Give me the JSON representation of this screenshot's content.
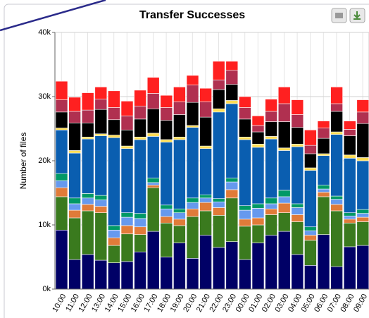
{
  "chart_data": {
    "type": "stacked_bar",
    "title": "Transfer Successes",
    "y_label": "Number of files",
    "categories": [
      "10:00",
      "11:00",
      "12:00",
      "13:00",
      "14:00",
      "15:00",
      "16:00",
      "17:00",
      "18:00",
      "19:00",
      "20:00",
      "21:00",
      "22:00",
      "23:00",
      "00:00",
      "01:00",
      "02:00",
      "03:00",
      "04:00",
      "05:00",
      "06:00",
      "07:00",
      "08:00",
      "09:00"
    ],
    "series": [
      {
        "color": "#000066",
        "values": [
          9200,
          4600,
          5400,
          4500,
          4100,
          4300,
          5800,
          9000,
          5000,
          7200,
          4800,
          8400,
          6500,
          7400,
          4600,
          7200,
          8400,
          9000,
          5400,
          3700,
          8500,
          3500,
          6600,
          6800
        ]
      },
      {
        "color": "#3a7a1e",
        "values": [
          5200,
          6500,
          6800,
          7400,
          2700,
          4300,
          2700,
          6800,
          5300,
          2700,
          6500,
          3800,
          5000,
          6800,
          5200,
          2800,
          3200,
          2900,
          5100,
          3900,
          5900,
          8700,
          3700,
          3700
        ]
      },
      {
        "color": "#e07b39",
        "values": [
          1400,
          1200,
          1000,
          1000,
          1200,
          1300,
          1200,
          400,
          1000,
          1000,
          1200,
          1300,
          1200,
          1300,
          1100,
          1100,
          900,
          1500,
          1100,
          800,
          700,
          1000,
          600,
          700
        ]
      },
      {
        "color": "#6699ee",
        "values": [
          1100,
          1000,
          1000,
          1000,
          1200,
          1300,
          1300,
          400,
          1200,
          1000,
          1000,
          700,
          900,
          1200,
          1400,
          1500,
          800,
          1000,
          1100,
          700,
          500,
          800,
          500,
          600
        ]
      },
      {
        "color": "#009966",
        "values": [
          1100,
          900,
          700,
          700,
          700,
          700,
          800,
          700,
          600,
          600,
          700,
          500,
          500,
          600,
          700,
          700,
          900,
          1000,
          600,
          600,
          600,
          500,
          500,
          600
        ]
      },
      {
        "color": "#0a5eb0",
        "values": [
          6800,
          7000,
          8500,
          9300,
          13700,
          10000,
          11500,
          6500,
          9800,
          10800,
          11000,
          7200,
          13500,
          11600,
          10300,
          8800,
          9200,
          6200,
          8900,
          8800,
          4600,
          9600,
          8500,
          7600
        ]
      },
      {
        "color": "#ffdd55",
        "values": [
          300,
          400,
          300,
          300,
          400,
          400,
          400,
          500,
          400,
          400,
          300,
          400,
          500,
          500,
          400,
          500,
          400,
          400,
          400,
          400,
          300,
          400,
          500,
          500
        ]
      },
      {
        "color": "#000000",
        "values": [
          2500,
          4300,
          2200,
          3800,
          2400,
          2500,
          2800,
          3800,
          3000,
          3500,
          3600,
          4500,
          3000,
          2500,
          2800,
          1900,
          2300,
          4100,
          2600,
          2200,
          2400,
          3200,
          3000,
          5300
        ]
      },
      {
        "color": "#b03050",
        "values": [
          1900,
          1800,
          2000,
          1600,
          1900,
          2200,
          2000,
          2400,
          2000,
          2000,
          2700,
          2400,
          1500,
          2200,
          1800,
          1000,
          1600,
          2800,
          2000,
          1300,
          1600,
          1200,
          1000,
          1800
        ]
      },
      {
        "color": "#ff2020",
        "values": [
          2900,
          2200,
          2700,
          1900,
          2600,
          2300,
          2500,
          2500,
          1900,
          2300,
          1500,
          2100,
          2900,
          1400,
          1700,
          1500,
          1900,
          2600,
          2300,
          2400,
          1100,
          2600,
          1300,
          1900
        ]
      }
    ],
    "ylim": [
      0,
      40000
    ],
    "yticks": [
      {
        "value": 0,
        "label": "0k"
      },
      {
        "value": 10000,
        "label": "10k"
      },
      {
        "value": 20000,
        "label": "20k"
      },
      {
        "value": 30000,
        "label": "30k"
      },
      {
        "value": 40000,
        "label": "40k"
      }
    ],
    "grid": true
  }
}
